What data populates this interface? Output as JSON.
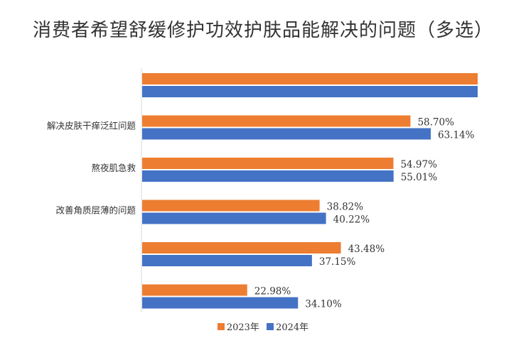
{
  "chart_data": {
    "type": "bar",
    "orientation": "horizontal",
    "title": "消费者希望舒缓修护功效护肤品能解决的问题（多选）",
    "categories": [
      "",
      "解决皮肤干痒泛红问题",
      "熬夜肌急救",
      "改善角质层薄的问题",
      "",
      ""
    ],
    "series": [
      {
        "name": "2023年",
        "color": "#ED7D31",
        "values": [
          null,
          58.7,
          54.97,
          38.82,
          43.48,
          22.98
        ],
        "labels": [
          "",
          "58.70%",
          "54.97%",
          "38.82%",
          "43.48%",
          "22.98%"
        ]
      },
      {
        "name": "2024年",
        "color": "#4472C4",
        "values": [
          null,
          63.14,
          55.01,
          40.22,
          37.15,
          34.1
        ],
        "labels": [
          "",
          "63.14%",
          "55.01%",
          "40.22%",
          "37.15%",
          "34.10%"
        ]
      }
    ],
    "xlim": [
      0,
      100
    ],
    "grid": false,
    "legend_position": "bottom"
  }
}
